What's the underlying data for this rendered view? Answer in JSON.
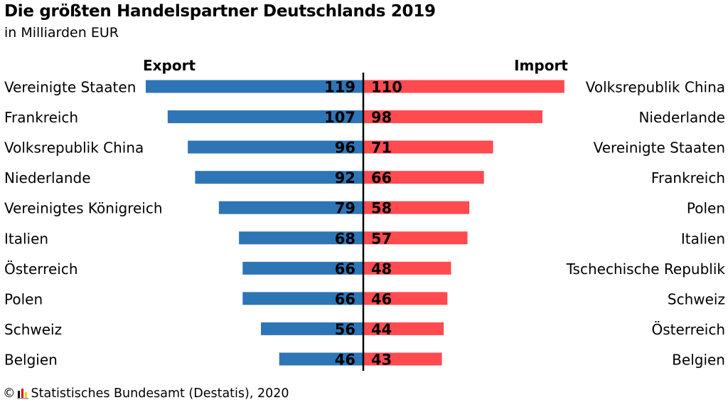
{
  "header": {
    "title": "Die größten Handelspartner Deutschlands 2019",
    "subtitle": "in Milliarden EUR"
  },
  "footer": {
    "copyright_symbol": "©",
    "source": "Statistisches Bundesamt (Destatis), 2020",
    "logo_icon": "destatis-logo-icon"
  },
  "colors": {
    "export": "#2e75b6",
    "import": "#ff4a4f",
    "axis": "#000000"
  },
  "chart_data": {
    "type": "bar",
    "orientation": "horizontal-diverging",
    "unit": "in Milliarden EUR",
    "xlim": [
      0,
      119
    ],
    "grid": false,
    "export": {
      "name": "Export",
      "categories": [
        "Vereinigte Staaten",
        "Frankreich",
        "Volksrepublik China",
        "Niederlande",
        "Vereinigtes Königreich",
        "Italien",
        "Österreich",
        "Polen",
        "Schweiz",
        "Belgien"
      ],
      "values": [
        119,
        107,
        96,
        92,
        79,
        68,
        66,
        66,
        56,
        46
      ]
    },
    "import": {
      "name": "Import",
      "categories": [
        "Volksrepublik China",
        "Niederlande",
        "Vereinigte Staaten",
        "Frankreich",
        "Polen",
        "Italien",
        "Tschechische Republik",
        "Schweiz",
        "Österreich",
        "Belgien"
      ],
      "values": [
        110,
        98,
        71,
        66,
        58,
        57,
        48,
        46,
        44,
        43
      ]
    }
  }
}
